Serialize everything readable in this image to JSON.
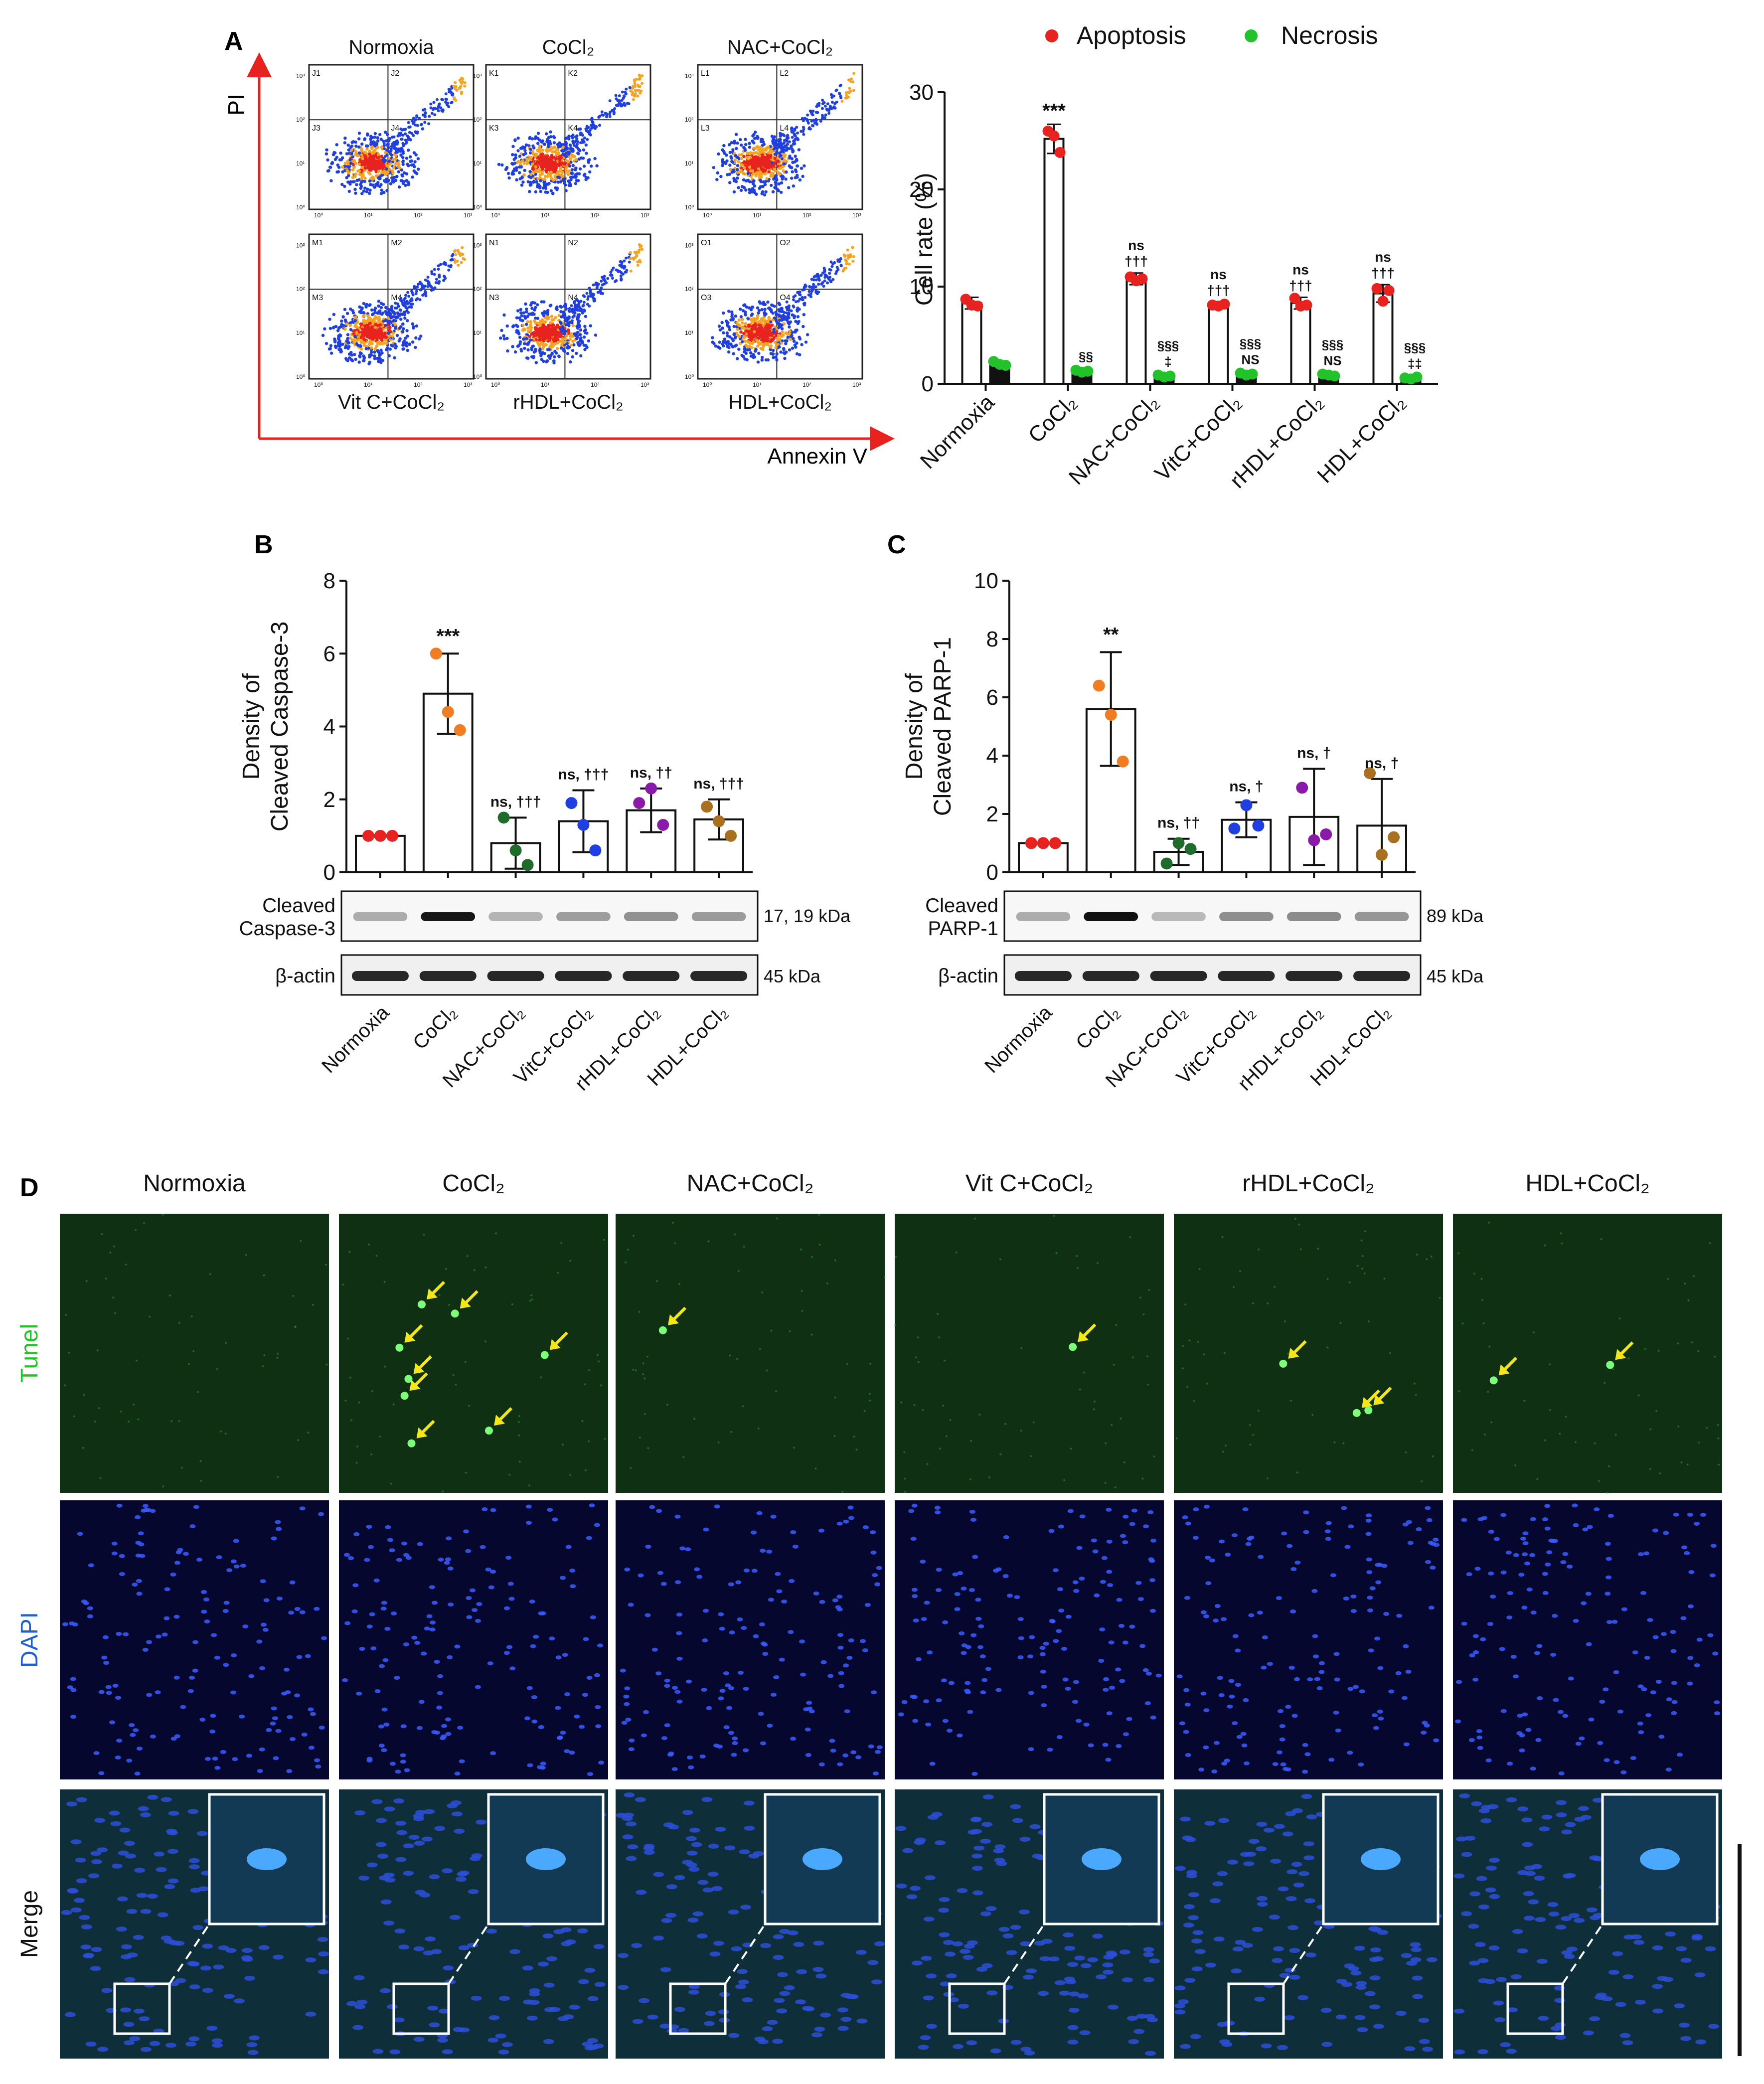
{
  "panel_labels": {
    "a": "A",
    "b": "B",
    "c": "C",
    "d": "D"
  },
  "flow": {
    "titles_top": [
      "Normoxia",
      "CoCl₂",
      "NAC+CoCl₂"
    ],
    "titles_bottom": [
      "Vit C+CoCl₂",
      "rHDL+CoCl₂",
      "HDL+CoCl₂"
    ],
    "y_axis_label": "PI",
    "x_axis_label": "Annexin V",
    "quadrant_labels": [
      [
        "J1",
        "J2",
        "J3",
        "J4"
      ],
      [
        "K1",
        "K2",
        "K3",
        "K4"
      ],
      [
        "L1",
        "L2",
        "L3",
        "L4"
      ],
      [
        "M1",
        "M2",
        "M3",
        "M4"
      ],
      [
        "N1",
        "N2",
        "N3",
        "N4"
      ],
      [
        "O1",
        "O2",
        "O3",
        "O4"
      ]
    ],
    "tick_labels": [
      "10⁰",
      "10¹",
      "10²",
      "10³"
    ]
  },
  "colors": {
    "apoptosis": "#e8231f",
    "necrosis": "#22c22b",
    "orange": "#f07d22",
    "green_dark": "#1e6b2b",
    "blue": "#1f3fe0",
    "purple": "#8a1aa8",
    "brown": "#a8701f",
    "arrow": "#f5e617",
    "tunel_bg": "#0f3012",
    "dapi_bg": "#05072e",
    "merge_bg": "#0e2e3a"
  },
  "chart_data": [
    {
      "type": "bar",
      "panel": "A",
      "categories": [
        "Normoxia",
        "CoCl2",
        "NAC+CoCl2",
        "VitC+CoCl2",
        "rHDL+CoCl2",
        "HDL+CoCl2"
      ],
      "series": [
        {
          "name": "Apoptosis",
          "values": [
            8.3,
            25.2,
            10.8,
            8.1,
            8.3,
            9.3
          ],
          "sd": [
            0.6,
            1.5,
            0.6,
            0.3,
            0.6,
            0.9
          ],
          "points": [
            [
              8.7,
              8.1,
              8.0
            ],
            [
              26.0,
              25.5,
              23.8
            ],
            [
              11.0,
              10.6,
              10.8
            ],
            [
              8.1,
              8.0,
              8.2
            ],
            [
              8.8,
              8.0,
              8.1
            ],
            [
              9.8,
              8.5,
              9.6
            ]
          ]
        },
        {
          "name": "Necrosis",
          "values": [
            2.1,
            1.3,
            0.8,
            1.0,
            0.9,
            0.6
          ],
          "sd": [
            0.4,
            0.2,
            0.2,
            0.2,
            0.1,
            0.1
          ],
          "points": [
            [
              2.3,
              2.0,
              1.9
            ],
            [
              1.4,
              1.2,
              1.3
            ],
            [
              0.9,
              0.7,
              0.8
            ],
            [
              1.1,
              0.9,
              1.0
            ],
            [
              1.0,
              0.9,
              0.8
            ],
            [
              0.6,
              0.5,
              0.7
            ]
          ]
        }
      ],
      "ylabel": "Cell rate (%)",
      "ylim": [
        0,
        30
      ],
      "yticks": [
        "0",
        "10",
        "20",
        "30"
      ],
      "xticklabels": [
        "Normoxia",
        "CoCl₂",
        "NAC+CoCl₂",
        "VitC+CoCl₂",
        "rHDL+CoCl₂",
        "HDL+CoCl₂"
      ],
      "legend": [
        "Apoptosis",
        "Necrosis"
      ],
      "legend_position": "top",
      "annotations_apoptosis": [
        [],
        [
          "***"
        ],
        [
          "ns",
          "†††"
        ],
        [
          "ns",
          "†††"
        ],
        [
          "ns",
          "†††"
        ],
        [
          "ns",
          "†††"
        ]
      ],
      "annotations_necrosis": [
        [],
        [
          "§§"
        ],
        [
          "§§§",
          "‡"
        ],
        [
          "§§§",
          "NS"
        ],
        [
          "§§§",
          "NS"
        ],
        [
          "§§§",
          "‡‡"
        ]
      ]
    },
    {
      "type": "bar",
      "panel": "B",
      "categories": [
        "Normoxia",
        "CoCl2",
        "NAC+CoCl2",
        "VitC+CoCl2",
        "rHDL+CoCl2",
        "HDL+CoCl2"
      ],
      "values": [
        1.0,
        4.9,
        0.8,
        1.4,
        1.7,
        1.45
      ],
      "sd": [
        0.02,
        1.1,
        0.7,
        0.85,
        0.6,
        0.55
      ],
      "points": [
        [
          1.0,
          1.0,
          1.0
        ],
        [
          6.0,
          4.4,
          3.9
        ],
        [
          1.5,
          0.6,
          0.2
        ],
        [
          1.9,
          1.3,
          0.6
        ],
        [
          1.9,
          2.3,
          1.3
        ],
        [
          1.8,
          1.4,
          1.0
        ]
      ],
      "point_colors": [
        "apoptosis",
        "orange",
        "green_dark",
        "blue",
        "purple",
        "brown"
      ],
      "ylabel": [
        "Density of",
        "Cleaved Caspase-3"
      ],
      "ylim": [
        0,
        8
      ],
      "yticks": [
        "0",
        "2",
        "4",
        "6",
        "8"
      ],
      "annotations": [
        "",
        "***",
        "ns, †††",
        "ns, †††",
        "ns, ††",
        "ns, †††"
      ],
      "blot_labels": [
        [
          "Cleaved",
          "Caspase-3"
        ],
        [
          "β-actin"
        ]
      ],
      "blot_sizes": [
        "17, 19 kDa",
        "45 kDa"
      ],
      "xticklabels": [
        "Normoxia",
        "CoCl₂",
        "NAC+CoCl₂",
        "VitC+CoCl₂",
        "rHDL+CoCl₂",
        "HDL+CoCl₂"
      ]
    },
    {
      "type": "bar",
      "panel": "C",
      "categories": [
        "Normoxia",
        "CoCl2",
        "NAC+CoCl2",
        "VitC+CoCl2",
        "rHDL+CoCl2",
        "HDL+CoCl2"
      ],
      "values": [
        1.0,
        5.6,
        0.7,
        1.8,
        1.9,
        1.6
      ],
      "sd": [
        0.02,
        1.95,
        0.45,
        0.6,
        1.65,
        1.6
      ],
      "points": [
        [
          1.0,
          1.0,
          1.0
        ],
        [
          6.4,
          5.4,
          3.8
        ],
        [
          0.3,
          1.0,
          0.8
        ],
        [
          1.5,
          2.3,
          1.6
        ],
        [
          2.9,
          1.1,
          1.3
        ],
        [
          3.4,
          0.6,
          1.2
        ]
      ],
      "point_colors": [
        "apoptosis",
        "orange",
        "green_dark",
        "blue",
        "purple",
        "brown"
      ],
      "ylabel": [
        "Density of",
        "Cleaved PARP-1"
      ],
      "ylim": [
        0,
        10
      ],
      "yticks": [
        "0",
        "2",
        "4",
        "6",
        "8",
        "10"
      ],
      "annotations": [
        "",
        "**",
        "ns, ††",
        "ns, †",
        "ns, †",
        "ns, †"
      ],
      "blot_labels": [
        [
          "Cleaved",
          "PARP-1"
        ],
        [
          "β-actin"
        ]
      ],
      "blot_sizes": [
        "89 kDa",
        "45 kDa"
      ],
      "xticklabels": [
        "Normoxia",
        "CoCl₂",
        "NAC+CoCl₂",
        "VitC+CoCl₂",
        "rHDL+CoCl₂",
        "HDL+CoCl₂"
      ]
    }
  ],
  "microscopy": {
    "columns": [
      "Normoxia",
      "CoCl₂",
      "NAC+CoCl₂",
      "Vit C+CoCl₂",
      "rHDL+CoCl₂",
      "HDL+CoCl₂"
    ],
    "rows": [
      "Tunel",
      "DAPI",
      "Merge"
    ],
    "row_colors": [
      "#22c22b",
      "#1f5fd0",
      "#111111"
    ],
    "tunel_positive_counts": [
      0,
      8,
      1,
      1,
      3,
      2
    ]
  }
}
